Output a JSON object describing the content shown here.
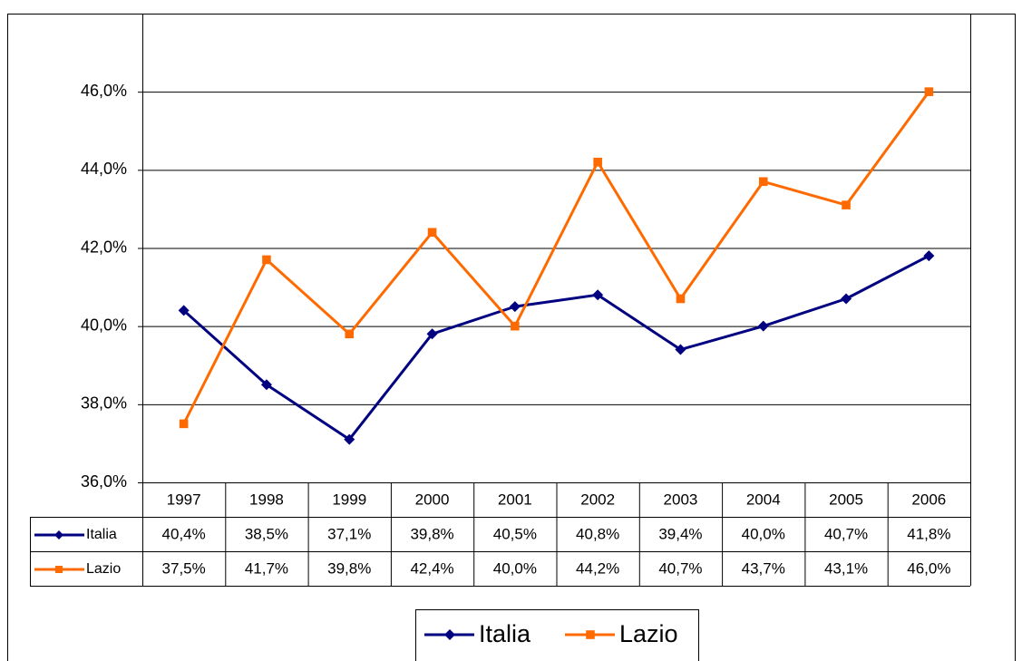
{
  "chart_data": {
    "type": "line",
    "categories": [
      "1997",
      "1998",
      "1999",
      "2000",
      "2001",
      "2002",
      "2003",
      "2004",
      "2005",
      "2006"
    ],
    "series": [
      {
        "name": "Italia",
        "color": "#000080",
        "marker": "diamond",
        "values": [
          40.4,
          38.5,
          37.1,
          39.8,
          40.5,
          40.8,
          39.4,
          40.0,
          40.7,
          41.8
        ],
        "value_labels": [
          "40,4%",
          "38,5%",
          "37,1%",
          "39,8%",
          "40,5%",
          "40,8%",
          "39,4%",
          "40,0%",
          "40,7%",
          "41,8%"
        ]
      },
      {
        "name": "Lazio",
        "color": "#ff6a00",
        "marker": "square",
        "values": [
          37.5,
          41.7,
          39.8,
          42.4,
          40.0,
          44.2,
          40.7,
          43.7,
          43.1,
          46.0
        ],
        "value_labels": [
          "37,5%",
          "41,7%",
          "39,8%",
          "42,4%",
          "40,0%",
          "44,2%",
          "40,7%",
          "43,7%",
          "43,1%",
          "46,0%"
        ]
      }
    ],
    "ylim": [
      36,
      48
    ],
    "yticks": [
      {
        "value": 36,
        "label": "36,0%"
      },
      {
        "value": 38,
        "label": "38,0%"
      },
      {
        "value": 40,
        "label": "40,0%"
      },
      {
        "value": 42,
        "label": "42,0%"
      },
      {
        "value": 44,
        "label": "44,0%"
      },
      {
        "value": 46,
        "label": "46,0%"
      }
    ],
    "grid": true,
    "legend": "bottom",
    "data_table": true
  }
}
